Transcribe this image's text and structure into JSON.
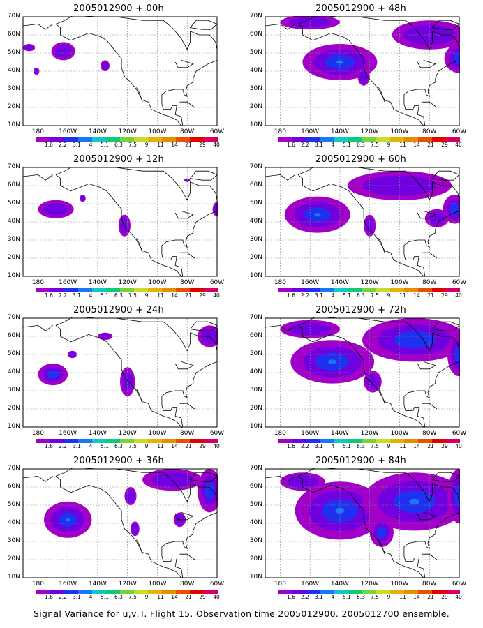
{
  "caption": "Signal Variance for u,v,T. Flight 15. Observation time 2005012900. 2005012700 ensemble.",
  "lat_labels": [
    "70N",
    "60N",
    "50N",
    "40N",
    "30N",
    "20N",
    "10N"
  ],
  "lon_labels": [
    "180",
    "160W",
    "140W",
    "120W",
    "100W",
    "80W",
    "60W"
  ],
  "colorbar": {
    "colors": [
      "#a000c8",
      "#7000e0",
      "#2030f0",
      "#1a78f5",
      "#10c8c8",
      "#10c878",
      "#78d23c",
      "#c8dc2c",
      "#e6b400",
      "#e88c00",
      "#e85000",
      "#e00000",
      "#d20064"
    ],
    "labels": [
      "1.6",
      "2.2",
      "3.1",
      "4",
      "5.1",
      "6.3",
      "7.5",
      "9",
      "11",
      "14",
      "21",
      "29",
      "40"
    ]
  },
  "panels": [
    {
      "title": "2005012900 + 00h",
      "blobs": [
        [
          -163,
          51,
          8,
          5,
          0
        ],
        [
          -135,
          43,
          3,
          3,
          0
        ],
        [
          -186,
          53,
          4,
          2,
          0
        ],
        [
          -181,
          40,
          2,
          2,
          0
        ]
      ]
    },
    {
      "title": "2005012900 + 12h",
      "blobs": [
        [
          -168,
          47,
          12,
          5,
          0
        ],
        [
          -122,
          38,
          4,
          6,
          0
        ],
        [
          -150,
          53,
          2,
          2,
          0
        ],
        [
          -80,
          63,
          2,
          1,
          0
        ],
        [
          -60,
          47,
          3,
          4,
          0
        ]
      ]
    },
    {
      "title": "2005012900 + 24h",
      "blobs": [
        [
          -170,
          39,
          10,
          6,
          1
        ],
        [
          -120,
          35,
          5,
          8,
          0
        ],
        [
          -135,
          60,
          5,
          2,
          0
        ],
        [
          -65,
          60,
          8,
          6,
          0
        ],
        [
          -157,
          50,
          3,
          2,
          0
        ]
      ]
    },
    {
      "title": "2005012900 + 36h",
      "blobs": [
        [
          -160,
          42,
          16,
          10,
          2
        ],
        [
          -90,
          64,
          20,
          6,
          0
        ],
        [
          -118,
          55,
          4,
          5,
          0
        ],
        [
          -115,
          37,
          3,
          4,
          0
        ],
        [
          -65,
          58,
          8,
          12,
          1
        ],
        [
          -85,
          42,
          4,
          4,
          0
        ]
      ]
    },
    {
      "title": "2005012900 + 48h",
      "blobs": [
        [
          -140,
          45,
          25,
          10,
          2
        ],
        [
          -80,
          60,
          25,
          8,
          0
        ],
        [
          -60,
          47,
          10,
          8,
          1
        ],
        [
          -124,
          37,
          4,
          5,
          0
        ],
        [
          -160,
          67,
          20,
          4,
          0
        ]
      ]
    },
    {
      "title": "2005012900 + 60h",
      "blobs": [
        [
          -155,
          44,
          22,
          10,
          2
        ],
        [
          -100,
          60,
          35,
          8,
          0
        ],
        [
          -63,
          47,
          8,
          8,
          1
        ],
        [
          -120,
          38,
          4,
          6,
          0
        ],
        [
          -75,
          42,
          8,
          5,
          0
        ]
      ]
    },
    {
      "title": "2005012900 + 72h",
      "blobs": [
        [
          -145,
          46,
          28,
          12,
          3
        ],
        [
          -90,
          58,
          35,
          12,
          1
        ],
        [
          -60,
          50,
          8,
          12,
          1
        ],
        [
          -118,
          35,
          6,
          6,
          0
        ],
        [
          -160,
          64,
          20,
          5,
          0
        ]
      ]
    },
    {
      "title": "2005012900 + 84h",
      "blobs": [
        [
          -140,
          47,
          30,
          16,
          3
        ],
        [
          -90,
          52,
          35,
          16,
          2
        ],
        [
          -60,
          55,
          8,
          15,
          2
        ],
        [
          -112,
          35,
          8,
          8,
          1
        ],
        [
          -165,
          63,
          15,
          5,
          0
        ]
      ]
    }
  ]
}
